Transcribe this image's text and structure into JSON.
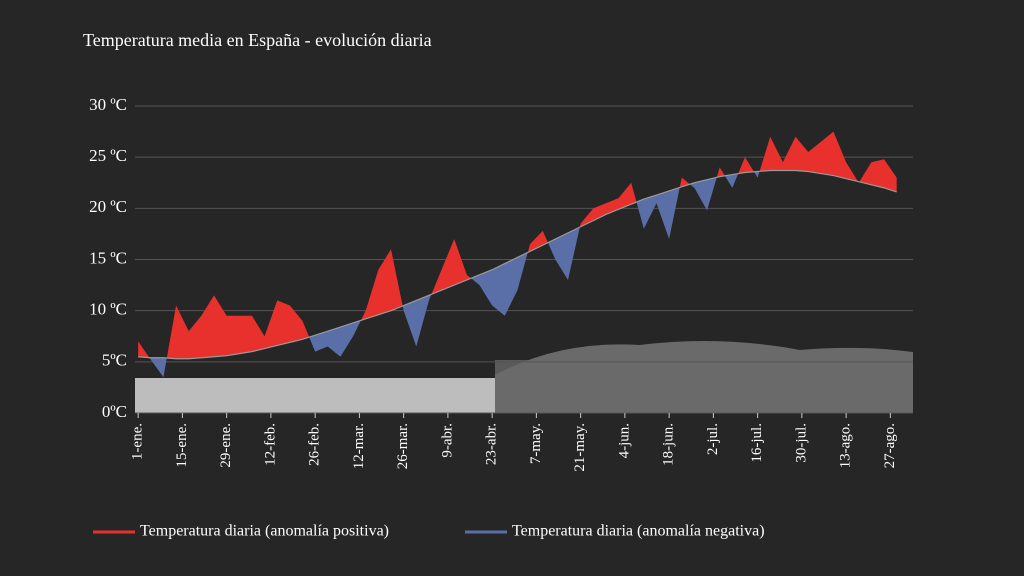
{
  "chart_data": {
    "type": "anomaly",
    "title": "Temperatura media en España - evolución diaria",
    "x": [
      1,
      5,
      9,
      13,
      17,
      21,
      25,
      29,
      33,
      37,
      41,
      45,
      49,
      53,
      57,
      61,
      65,
      69,
      73,
      77,
      81,
      85,
      89,
      93,
      97,
      101,
      105,
      109,
      113,
      117,
      121,
      125,
      129,
      133,
      137,
      141,
      145,
      149,
      153,
      157,
      161,
      165,
      169,
      173,
      177,
      181,
      185,
      189,
      193,
      197,
      201,
      205,
      209,
      213,
      217,
      221,
      225,
      229,
      233,
      237,
      241
    ],
    "values": [
      7,
      5.2,
      3.5,
      10.5,
      8,
      9.5,
      11.5,
      9.5,
      9.5,
      9.5,
      7.5,
      11,
      10.5,
      9,
      6,
      6.5,
      5.5,
      7.5,
      10,
      14,
      16,
      10,
      6.5,
      11,
      14,
      17,
      13.5,
      12.5,
      10.5,
      9.5,
      12,
      16.5,
      17.8,
      15,
      13,
      18.5,
      20,
      20.5,
      21,
      22.5,
      18,
      20.5,
      17,
      23,
      22,
      19.8,
      24,
      22,
      25,
      23,
      27,
      24.5,
      27,
      25.5,
      26.5,
      27.5,
      24.5,
      22.5,
      24.5,
      24.8,
      23
    ],
    "baseline": [
      5.5,
      5.4,
      5.4,
      5.3,
      5.3,
      5.4,
      5.5,
      5.6,
      5.8,
      6,
      6.3,
      6.6,
      6.9,
      7.2,
      7.6,
      8,
      8.4,
      8.8,
      9.2,
      9.6,
      10,
      10.5,
      11,
      11.5,
      12,
      12.5,
      13,
      13.5,
      14,
      14.6,
      15.2,
      15.8,
      16.4,
      17,
      17.6,
      18.2,
      18.8,
      19.4,
      19.9,
      20.4,
      20.9,
      21.3,
      21.7,
      22.1,
      22.5,
      22.8,
      23.1,
      23.3,
      23.5,
      23.6,
      23.7,
      23.7,
      23.7,
      23.6,
      23.4,
      23.2,
      22.9,
      22.6,
      22.3,
      22,
      21.6
    ],
    "legend": [
      {
        "name": "Temperatura diaria (anomalía positiva)",
        "color": "#e8312d"
      },
      {
        "name": "Temperatura diaria (anomalía negativa)",
        "color": "#5a6fa8"
      }
    ],
    "xlim": [
      0,
      243
    ],
    "xticks": [
      {
        "value": 1,
        "label": "1-ene."
      },
      {
        "value": 15,
        "label": "15-ene."
      },
      {
        "value": 29,
        "label": "29-ene."
      },
      {
        "value": 43,
        "label": "12-feb."
      },
      {
        "value": 57,
        "label": "26-feb."
      },
      {
        "value": 71,
        "label": "12-mar."
      },
      {
        "value": 85,
        "label": "26-mar."
      },
      {
        "value": 99,
        "label": "9-abr."
      },
      {
        "value": 113,
        "label": "23-abr."
      },
      {
        "value": 127,
        "label": "7-may."
      },
      {
        "value": 141,
        "label": "21-may."
      },
      {
        "value": 155,
        "label": "4-jun."
      },
      {
        "value": 169,
        "label": "18-jun."
      },
      {
        "value": 183,
        "label": "2-jul."
      },
      {
        "value": 197,
        "label": "16-jul."
      },
      {
        "value": 211,
        "label": "30-jul."
      },
      {
        "value": 225,
        "label": "13-ago."
      },
      {
        "value": 239,
        "label": "27-ago."
      }
    ],
    "ylim": [
      0,
      30
    ],
    "yticks": [
      {
        "value": 0,
        "label": "0ºC"
      },
      {
        "value": 5,
        "label": "5ºC"
      },
      {
        "value": 10,
        "label": "10 ºC"
      },
      {
        "value": 15,
        "label": "15 ºC"
      },
      {
        "value": 20,
        "label": "20 ºC"
      },
      {
        "value": 25,
        "label": "25 ºC"
      },
      {
        "value": 30,
        "label": "30 ºC"
      }
    ],
    "grid": true
  }
}
